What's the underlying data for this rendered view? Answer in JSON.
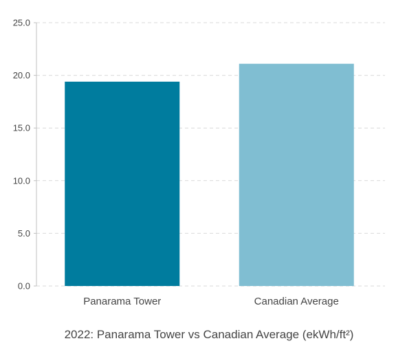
{
  "chart_data": {
    "type": "bar",
    "title": "",
    "caption": "2022: Panarama Tower vs Canadian Average (ekWh/ft²)",
    "xlabel": "",
    "ylabel": "",
    "categories": [
      "Panarama Tower",
      "Canadian Average"
    ],
    "values": [
      19.4,
      21.1
    ],
    "ylim": [
      0,
      25
    ],
    "yticks": [
      0,
      5,
      10,
      15,
      20,
      25
    ],
    "ytick_labels": [
      "0.0",
      "5.0",
      "10.0",
      "15.0",
      "20.0",
      "25.0"
    ],
    "grid": true,
    "legend": "none",
    "colors": [
      "#007c9e",
      "#80bed2"
    ],
    "grid_color": "#d9d9d9",
    "axis_color": "#bfbfbf"
  }
}
